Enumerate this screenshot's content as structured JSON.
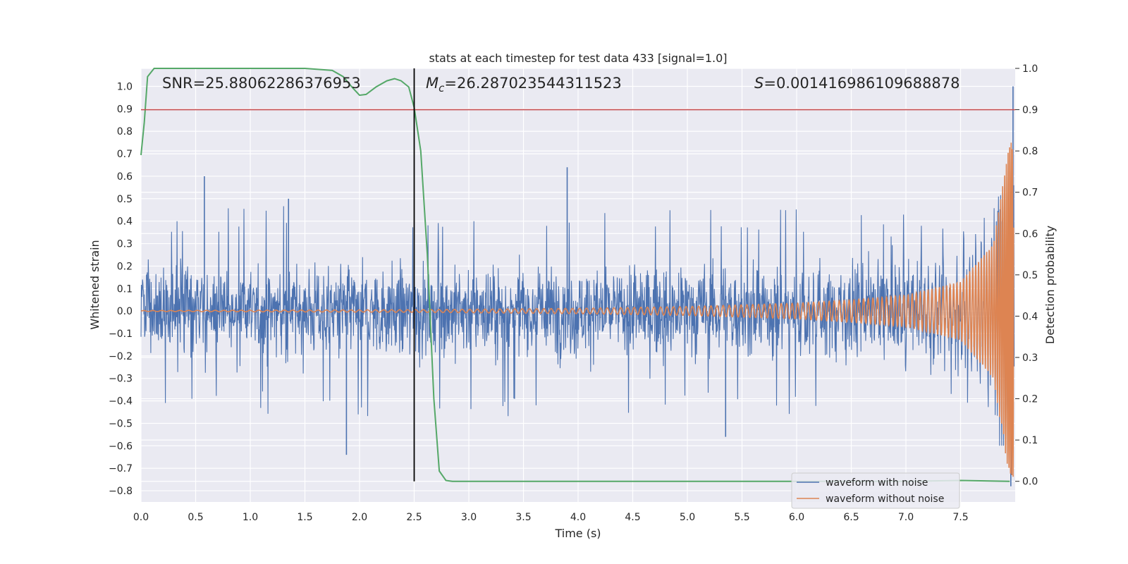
{
  "chart_data": {
    "type": "line",
    "title": "stats at each timestep for test data 433 [signal=1.0]",
    "xlabel": "Time (s)",
    "ylabel_left": "Whitened strain",
    "ylabel_right": "Detection probability",
    "xlim": [
      0.0,
      8.0
    ],
    "ylim_left": [
      -0.85,
      1.08
    ],
    "ylim_right": [
      -0.05,
      1.0
    ],
    "x_ticks": [
      0.0,
      0.5,
      1.0,
      1.5,
      2.0,
      2.5,
      3.0,
      3.5,
      4.0,
      4.5,
      5.0,
      5.5,
      6.0,
      6.5,
      7.0,
      7.5
    ],
    "x_tick_labels": [
      "0.0",
      "0.5",
      "1.0",
      "1.5",
      "2.0",
      "2.5",
      "3.0",
      "3.5",
      "4.0",
      "4.5",
      "5.0",
      "5.5",
      "6.0",
      "6.5",
      "7.0",
      "7.5"
    ],
    "y_left_ticks": [
      1.0,
      0.9,
      0.8,
      0.7,
      0.6,
      0.5,
      0.4,
      0.3,
      0.2,
      0.1,
      0.0,
      -0.1,
      -0.2,
      -0.3,
      -0.4,
      -0.5,
      -0.6,
      -0.7,
      -0.8
    ],
    "y_left_tick_labels": [
      "1.0",
      "0.9",
      "0.8",
      "0.7",
      "0.6",
      "0.5",
      "0.4",
      "0.3",
      "0.2",
      "0.1",
      "0.0",
      "−0.1",
      "−0.2",
      "−0.3",
      "−0.4",
      "−0.5",
      "−0.6",
      "−0.7",
      "−0.8"
    ],
    "y_right_ticks": [
      1.0,
      0.9,
      0.8,
      0.7,
      0.6,
      0.5,
      0.4,
      0.3,
      0.2,
      0.1,
      0.0
    ],
    "y_right_tick_labels": [
      "1.0",
      "0.9",
      "0.8",
      "0.7",
      "0.6",
      "0.5",
      "0.4",
      "0.3",
      "0.2",
      "0.1",
      "0.0"
    ],
    "grid": true,
    "legend_placement": "lower-right",
    "annotations": {
      "snr": "SNR=25.88062286376953",
      "mc_prefix": "M",
      "mc_sub": "c",
      "mc_value": "=26.287023544311523",
      "s_prefix": "S",
      "s_value": "=0.001416986109688878"
    },
    "threshold_right": 0.9,
    "vertical_marker_x": 2.5,
    "series": [
      {
        "name": "waveform with noise",
        "color": "#4c72b0",
        "axis": "left",
        "noise_amplitude": 0.27,
        "notable_points": [
          {
            "x": 0.58,
            "y": 0.6
          },
          {
            "x": 1.35,
            "y": 0.5
          },
          {
            "x": 1.88,
            "y": -0.64
          },
          {
            "x": 3.9,
            "y": 0.64
          },
          {
            "x": 5.35,
            "y": -0.56
          },
          {
            "x": 7.98,
            "y": 1.0
          },
          {
            "x": 7.96,
            "y": -0.78
          }
        ]
      },
      {
        "name": "waveform without noise",
        "color": "#dd8452",
        "axis": "left",
        "envelope": [
          {
            "x": 0.0,
            "y": 0.002
          },
          {
            "x": 2.5,
            "y": 0.006
          },
          {
            "x": 4.0,
            "y": 0.012
          },
          {
            "x": 5.0,
            "y": 0.02
          },
          {
            "x": 6.0,
            "y": 0.035
          },
          {
            "x": 6.5,
            "y": 0.05
          },
          {
            "x": 7.0,
            "y": 0.07
          },
          {
            "x": 7.5,
            "y": 0.13
          },
          {
            "x": 7.8,
            "y": 0.3
          },
          {
            "x": 7.95,
            "y": 0.75
          }
        ]
      },
      {
        "name": "detection probability",
        "color": "#55a868",
        "axis": "right",
        "x": [
          0.0,
          0.03,
          0.06,
          0.12,
          0.2,
          0.4,
          0.8,
          1.2,
          1.5,
          1.75,
          1.85,
          1.93,
          2.0,
          2.06,
          2.15,
          2.25,
          2.32,
          2.38,
          2.45,
          2.5,
          2.56,
          2.62,
          2.68,
          2.73,
          2.79,
          2.85,
          3.0,
          4.0,
          5.0,
          6.0,
          7.0,
          7.5,
          7.95
        ],
        "y": [
          0.79,
          0.87,
          0.98,
          1.0,
          1.0,
          1.0,
          1.0,
          1.0,
          1.0,
          0.995,
          0.98,
          0.955,
          0.935,
          0.937,
          0.955,
          0.97,
          0.975,
          0.97,
          0.955,
          0.905,
          0.8,
          0.55,
          0.2,
          0.025,
          0.002,
          0.0,
          0.0,
          0.0,
          0.0,
          0.0,
          0.0,
          0.002,
          0.0
        ]
      },
      {
        "name": "threshold",
        "color": "#c44e52",
        "axis": "right",
        "value": 0.9
      }
    ]
  }
}
